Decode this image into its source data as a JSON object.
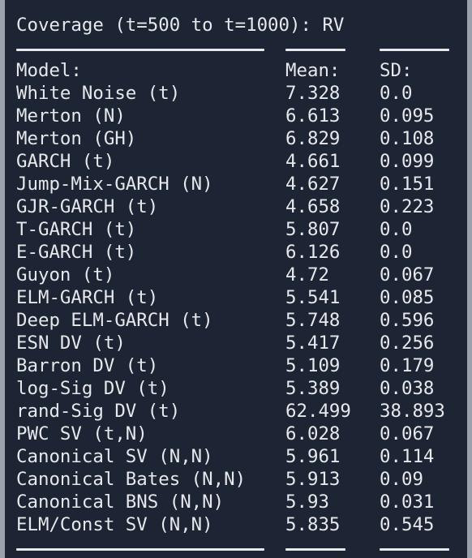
{
  "title": "Coverage (t=500 to t=1000): RV",
  "columns": {
    "model": "Model:",
    "mean": "Mean:",
    "sd": "SD:"
  },
  "rows": [
    {
      "model": "White Noise (t)",
      "mean": "7.328",
      "sd": "0.0"
    },
    {
      "model": "Merton (N)",
      "mean": "6.613",
      "sd": "0.095"
    },
    {
      "model": "Merton (GH)",
      "mean": "6.829",
      "sd": "0.108"
    },
    {
      "model": "GARCH (t)",
      "mean": "4.661",
      "sd": "0.099"
    },
    {
      "model": "Jump-Mix-GARCH (N)",
      "mean": "4.627",
      "sd": "0.151"
    },
    {
      "model": "GJR-GARCH (t)",
      "mean": "4.658",
      "sd": "0.223"
    },
    {
      "model": "T-GARCH (t)",
      "mean": "5.807",
      "sd": "0.0"
    },
    {
      "model": "E-GARCH (t)",
      "mean": "6.126",
      "sd": "0.0"
    },
    {
      "model": "Guyon (t)",
      "mean": "4.72",
      "sd": "0.067"
    },
    {
      "model": "ELM-GARCH (t)",
      "mean": "5.541",
      "sd": "0.085"
    },
    {
      "model": "Deep ELM-GARCH (t)",
      "mean": "5.748",
      "sd": "0.596"
    },
    {
      "model": "ESN DV (t)",
      "mean": "5.417",
      "sd": "0.256"
    },
    {
      "model": "Barron DV (t)",
      "mean": "5.109",
      "sd": "0.179"
    },
    {
      "model": "log-Sig DV (t)",
      "mean": "5.389",
      "sd": "0.038"
    },
    {
      "model": "rand-Sig DV (t)",
      "mean": "62.499",
      "sd": "38.893"
    },
    {
      "model": "PWC SV (t,N)",
      "mean": "6.028",
      "sd": "0.067"
    },
    {
      "model": "Canonical SV (N,N)",
      "mean": "5.961",
      "sd": "0.114"
    },
    {
      "model": "Canonical Bates (N,N)",
      "mean": "5.913",
      "sd": "0.09"
    },
    {
      "model": "Canonical BNS (N,N)",
      "mean": "5.93",
      "sd": "0.031"
    },
    {
      "model": "ELM/Const SV (N,N)",
      "mean": "5.835",
      "sd": "0.545"
    }
  ]
}
